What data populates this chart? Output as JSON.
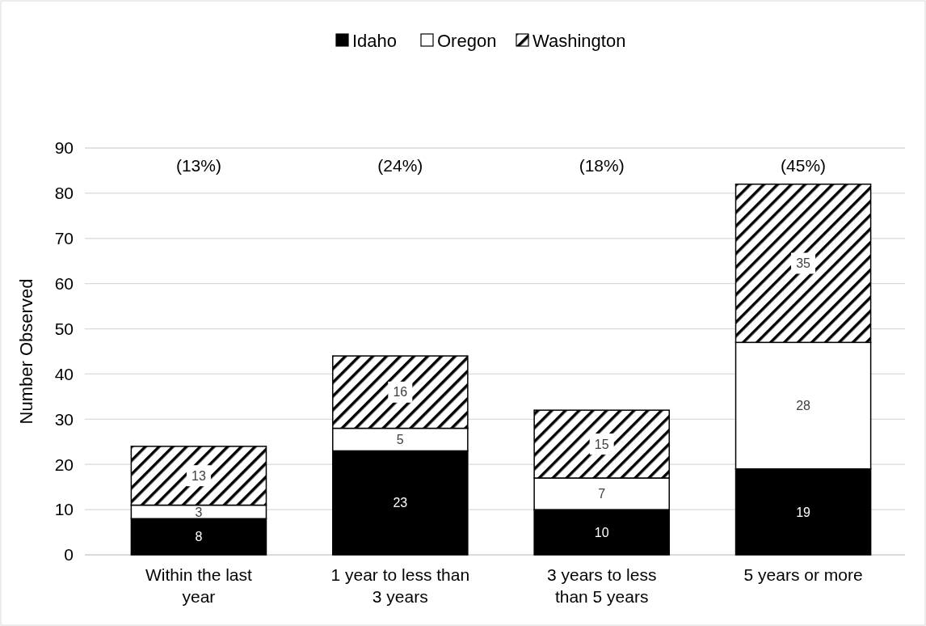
{
  "chart_data": {
    "type": "bar",
    "stacked": true,
    "ylabel": "Number Observed",
    "categories": [
      "Within the last year",
      "1 year to less than 3 years",
      "3 years to less than 5 years",
      "5 years or more"
    ],
    "series": [
      {
        "name": "Idaho",
        "color": "#000000",
        "values": [
          8,
          23,
          10,
          19
        ]
      },
      {
        "name": "Oregon",
        "color": "#ffffff",
        "values": [
          3,
          5,
          7,
          28
        ]
      },
      {
        "name": "Washington",
        "color": "#000000",
        "values": [
          13,
          16,
          15,
          35
        ]
      }
    ],
    "ylim": [
      0,
      90
    ],
    "yticks": [
      0,
      10,
      20,
      30,
      40,
      50,
      60,
      70,
      80,
      90
    ],
    "grid": "y",
    "legend": "top",
    "data_labels": true,
    "annotations": [
      "(13%)",
      "(24%)",
      "(18%)",
      "(45%)"
    ]
  }
}
